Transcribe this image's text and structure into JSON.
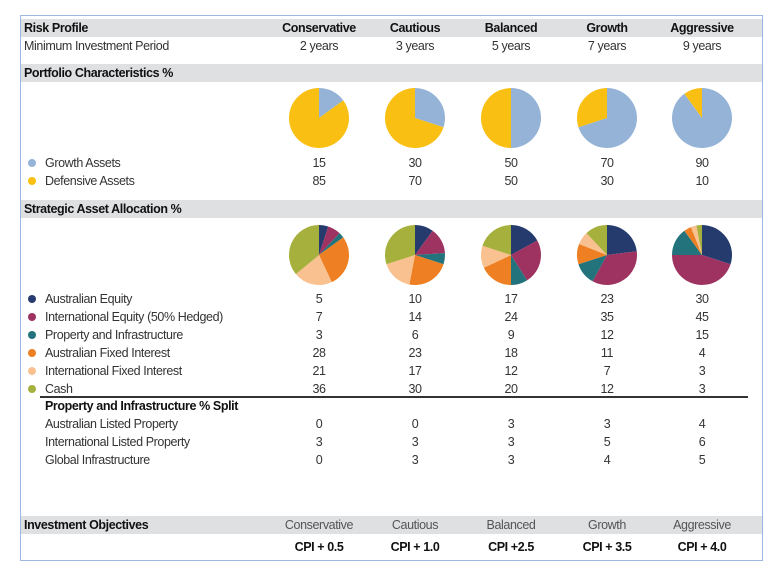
{
  "header": {
    "title": "Risk Profile",
    "profiles": [
      "Conservative",
      "Cautious",
      "Balanced",
      "Growth",
      "Aggressive"
    ]
  },
  "min_period": {
    "label": "Minimum Investment Period",
    "values": [
      "2 years",
      "3 years",
      "5 years",
      "7 years",
      "9 years"
    ]
  },
  "portfolio": {
    "title": "Portfolio Characteristics %",
    "series": [
      {
        "name": "Growth Assets",
        "color": "#95b3d7",
        "values": [
          15,
          30,
          50,
          70,
          90
        ]
      },
      {
        "name": "Defensive Assets",
        "color": "#f9c013",
        "values": [
          85,
          70,
          50,
          30,
          10
        ]
      }
    ]
  },
  "allocation": {
    "title": "Strategic Asset Allocation %",
    "series": [
      {
        "name": "Australian Equity",
        "color": "#253b6e",
        "values": [
          5,
          10,
          17,
          23,
          30
        ]
      },
      {
        "name": "International Equity (50% Hedged)",
        "color": "#9e3261",
        "values": [
          7,
          14,
          24,
          35,
          45
        ]
      },
      {
        "name": "Property and Infrastructure",
        "color": "#22737b",
        "values": [
          3,
          6,
          9,
          12,
          15
        ]
      },
      {
        "name": "Australian Fixed Interest",
        "color": "#ee7f22",
        "values": [
          28,
          23,
          18,
          11,
          4
        ]
      },
      {
        "name": "International Fixed Interest",
        "color": "#f8c18f",
        "values": [
          21,
          17,
          12,
          7,
          3
        ]
      },
      {
        "name": "Cash",
        "color": "#a6b03c",
        "values": [
          36,
          30,
          20,
          12,
          3
        ]
      }
    ]
  },
  "property_split": {
    "title": "Property and Infrastructure % Split",
    "rows": [
      {
        "label": "Australian Listed Property",
        "values": [
          "0",
          "0",
          "3",
          "3",
          "4"
        ]
      },
      {
        "label": "International Listed Property",
        "values": [
          "3",
          "3",
          "3",
          "5",
          "6"
        ]
      },
      {
        "label": "Global Infrastructure",
        "values": [
          "0",
          "3",
          "3",
          "4",
          "5"
        ]
      }
    ]
  },
  "objectives": {
    "title": "Investment Objectives",
    "profiles": [
      "Conservative",
      "Cautious",
      "Balanced",
      "Growth",
      "Aggressive"
    ],
    "targets": [
      "CPI + 0.5",
      "CPI + 1.0",
      "CPI +2.5",
      "CPI + 3.5",
      "CPI + 4.0"
    ]
  }
}
